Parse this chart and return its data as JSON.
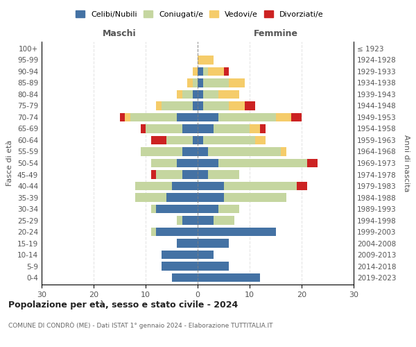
{
  "age_groups": [
    "100+",
    "95-99",
    "90-94",
    "85-89",
    "80-84",
    "75-79",
    "70-74",
    "65-69",
    "60-64",
    "55-59",
    "50-54",
    "45-49",
    "40-44",
    "35-39",
    "30-34",
    "25-29",
    "20-24",
    "15-19",
    "10-14",
    "5-9",
    "0-4"
  ],
  "birth_years": [
    "≤ 1923",
    "1924-1928",
    "1929-1933",
    "1934-1938",
    "1939-1943",
    "1944-1948",
    "1949-1953",
    "1954-1958",
    "1959-1963",
    "1964-1968",
    "1969-1973",
    "1974-1978",
    "1979-1983",
    "1984-1988",
    "1989-1993",
    "1994-1998",
    "1999-2003",
    "2004-2008",
    "2009-2013",
    "2014-2018",
    "2019-2023"
  ],
  "colors": {
    "celibi": "#4472a4",
    "coniugati": "#c5d6a0",
    "vedovi": "#f5cc6a",
    "divorziati": "#cc2222"
  },
  "males": {
    "celibi": [
      0,
      0,
      0,
      0,
      1,
      1,
      4,
      3,
      1,
      3,
      4,
      3,
      5,
      6,
      8,
      3,
      8,
      4,
      7,
      7,
      5
    ],
    "coniugati": [
      0,
      0,
      0,
      1,
      2,
      6,
      9,
      7,
      5,
      8,
      5,
      5,
      7,
      6,
      1,
      1,
      1,
      0,
      0,
      0,
      0
    ],
    "vedovi": [
      0,
      0,
      1,
      1,
      1,
      1,
      1,
      0,
      0,
      0,
      0,
      0,
      0,
      0,
      0,
      0,
      0,
      0,
      0,
      0,
      0
    ],
    "divorziati": [
      0,
      0,
      0,
      0,
      0,
      0,
      1,
      1,
      3,
      0,
      0,
      1,
      0,
      0,
      0,
      0,
      0,
      0,
      0,
      0,
      0
    ]
  },
  "females": {
    "celibi": [
      0,
      0,
      1,
      1,
      1,
      1,
      4,
      3,
      1,
      2,
      4,
      2,
      5,
      5,
      4,
      3,
      15,
      6,
      3,
      6,
      12
    ],
    "coniugati": [
      0,
      0,
      1,
      5,
      3,
      5,
      11,
      7,
      10,
      14,
      17,
      6,
      14,
      12,
      4,
      4,
      0,
      0,
      0,
      0,
      0
    ],
    "vedovi": [
      0,
      3,
      3,
      3,
      4,
      3,
      3,
      2,
      2,
      1,
      0,
      0,
      0,
      0,
      0,
      0,
      0,
      0,
      0,
      0,
      0
    ],
    "divorziati": [
      0,
      0,
      1,
      0,
      0,
      2,
      2,
      1,
      0,
      0,
      2,
      0,
      2,
      0,
      0,
      0,
      0,
      0,
      0,
      0,
      0
    ]
  },
  "xlim": 30,
  "title": "Popolazione per età, sesso e stato civile - 2024",
  "subtitle": "COMUNE DI CONDRÒ (ME) - Dati ISTAT 1° gennaio 2024 - Elaborazione TUTTITALIA.IT",
  "ylabel_left": "Fasce di età",
  "ylabel_right": "Anni di nascita",
  "label_maschi": "Maschi",
  "label_femmine": "Femmine",
  "legend_labels": [
    "Celibi/Nubili",
    "Coniugati/e",
    "Vedovi/e",
    "Divorziati/e"
  ]
}
